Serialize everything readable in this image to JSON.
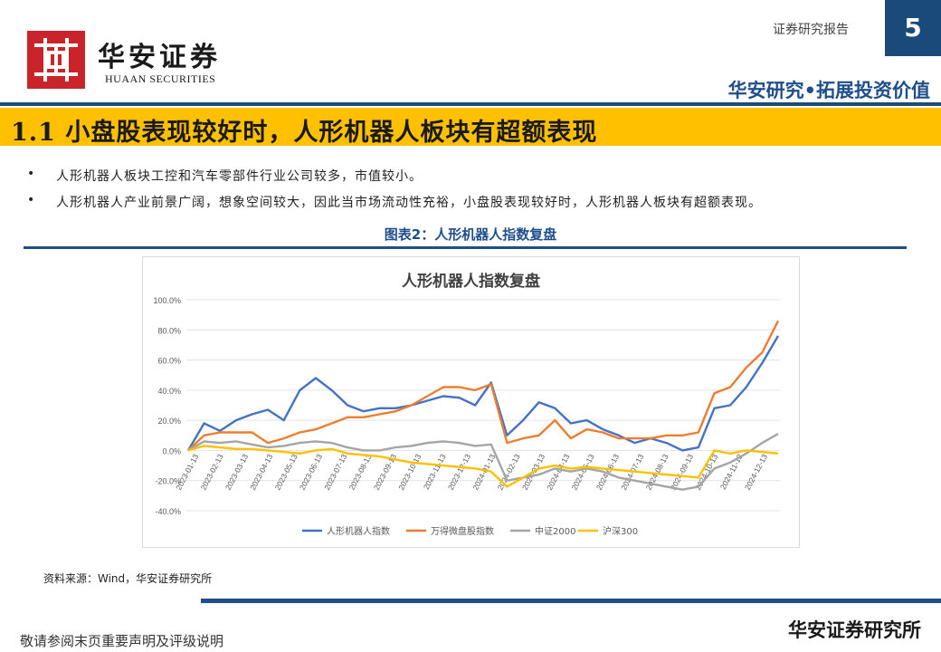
{
  "header": {
    "brand_cn": "华安证券",
    "brand_en": "HUAAN SECURITIES",
    "report_label": "证券研究报告",
    "page_number": "5",
    "slogan": "华安研究•拓展投资价值",
    "brand_color": "#c9242b",
    "accent_blue": "#1a4a7a"
  },
  "section": {
    "title": "1.1 小盘股表现较好时，人形机器人板块有超额表现",
    "bullets": [
      "人形机器人板块工控和汽车零部件行业公司较多，市值较小。",
      "人形机器人产业前景广阔，想象空间较大，因此当市场流动性充裕，小盘股表现较好时，人形机器人板块有超额表现。"
    ]
  },
  "figure": {
    "caption": "图表2：人形机器人指数复盘",
    "source": "资料来源：Wind，华安证券研究所"
  },
  "chart_data": {
    "type": "line",
    "title": "人形机器人指数复盘",
    "ylim": [
      -40,
      100
    ],
    "yticks": [
      "100.0%",
      "80.0%",
      "60.0%",
      "40.0%",
      "20.0%",
      "0.0%",
      "-20.0%",
      "-40.0%"
    ],
    "ytick_values": [
      100,
      80,
      60,
      40,
      20,
      0,
      -20,
      -40
    ],
    "x_tick_labels": [
      "2023-01-13",
      "2023-02-13",
      "2023-03-13",
      "2023-04-13",
      "2023-05-13",
      "2023-06-13",
      "2023-07-13",
      "2023-08-13",
      "2023-09-13",
      "2023-10-13",
      "2023-11-13",
      "2023-12-13",
      "2024-01-13",
      "2024-02-13",
      "2024-03-13",
      "2024-04-13",
      "2024-05-13",
      "2024-06-13",
      "2024-07-13",
      "2024-08-13",
      "2024-09-13",
      "2024-10-13",
      "2024-11-13",
      "2024-12-13"
    ],
    "grid": true,
    "legend_position": "bottom",
    "series": [
      {
        "name": "人形机器人指数",
        "color": "#4472c4",
        "values": [
          0,
          18,
          13,
          20,
          24,
          27,
          20,
          40,
          48,
          40,
          30,
          26,
          28,
          28,
          30,
          33,
          36,
          35,
          30,
          45,
          10,
          20,
          32,
          28,
          18,
          20,
          14,
          10,
          5,
          8,
          5,
          0,
          2,
          28,
          30,
          42,
          58,
          76
        ]
      },
      {
        "name": "万得微盘股指数",
        "color": "#ed7d31",
        "values": [
          0,
          10,
          12,
          12,
          12,
          5,
          8,
          12,
          14,
          18,
          22,
          22,
          24,
          26,
          30,
          36,
          42,
          42,
          40,
          44,
          5,
          8,
          10,
          20,
          8,
          14,
          12,
          8,
          8,
          8,
          10,
          10,
          12,
          38,
          42,
          55,
          65,
          86
        ]
      },
      {
        "name": "中证2000",
        "color": "#a5a5a5",
        "values": [
          0,
          6,
          5,
          6,
          4,
          2,
          3,
          5,
          6,
          5,
          2,
          0,
          0,
          2,
          3,
          5,
          6,
          5,
          3,
          4,
          -20,
          -18,
          -16,
          -12,
          -14,
          -12,
          -14,
          -18,
          -20,
          -22,
          -24,
          -26,
          -24,
          -12,
          -8,
          -2,
          5,
          11
        ]
      },
      {
        "name": "沪深300",
        "color": "#ffc000",
        "values": [
          0,
          3,
          2,
          1,
          1,
          0,
          -1,
          -2,
          0,
          1,
          -2,
          -3,
          -4,
          -6,
          -8,
          -9,
          -10,
          -11,
          -12,
          -14,
          -24,
          -18,
          -12,
          -10,
          -12,
          -11,
          -12,
          -13,
          -14,
          -15,
          -16,
          -17,
          -18,
          0,
          -2,
          0,
          -1,
          -2
        ]
      }
    ]
  },
  "footer": {
    "disclaimer": "敬请参阅末页重要声明及评级说明",
    "institute": "华安证券研究所"
  }
}
